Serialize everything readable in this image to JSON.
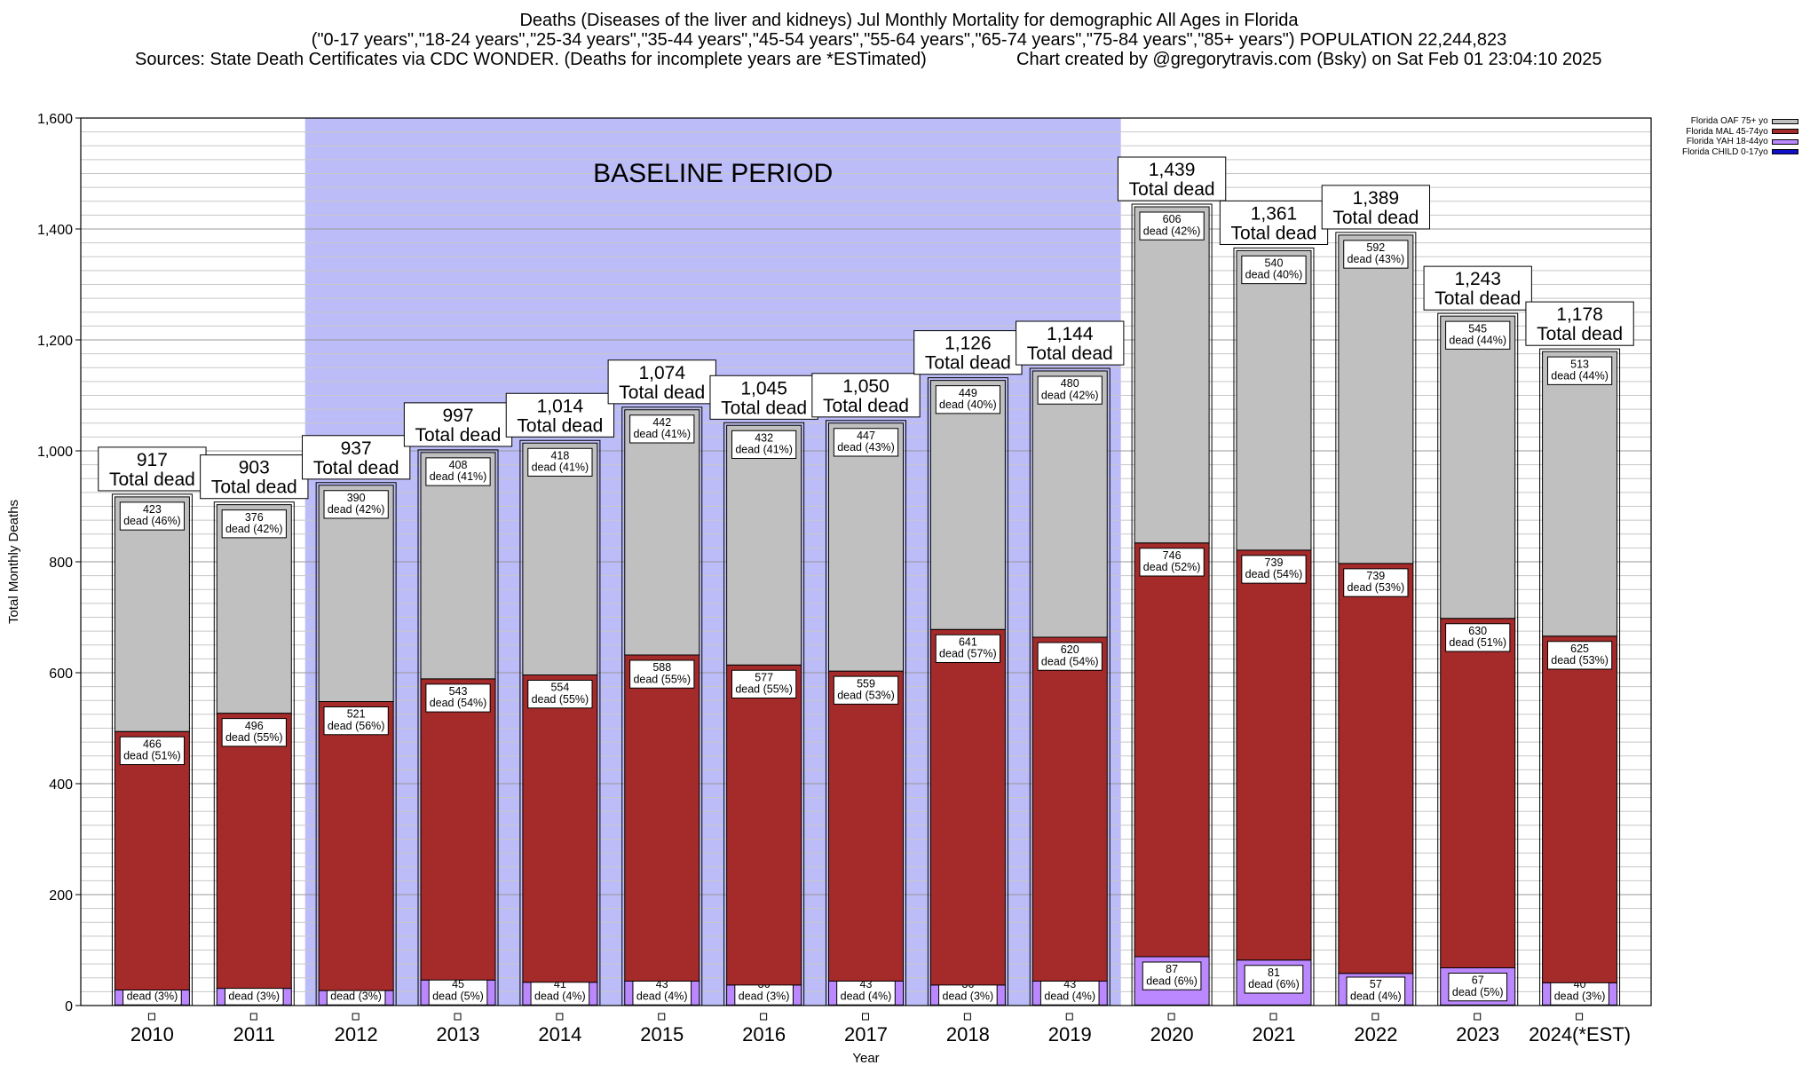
{
  "titles": {
    "line1": "Deaths (Diseases of the liver and kidneys) Jul Monthly Mortality for demographic All Ages in Florida",
    "line2": "(\"0-17 years\",\"18-24 years\",\"25-34 years\",\"35-44 years\",\"45-54 years\",\"55-64 years\",\"65-74 years\",\"75-84 years\",\"85+ years\") POPULATION 22,244,823",
    "sources": "Sources: State Death Certificates via CDC WONDER. (Deaths for incomplete years are *ESTimated)",
    "credit": "Chart created by @gregorytravis.com (Bsky) on Sat Feb 01 23:04:10 2025"
  },
  "legend": [
    {
      "label": "Florida OAF 75+ yo",
      "color": "#c0c0c0"
    },
    {
      "label": "Florida MAL 45-74yo",
      "color": "#a52a2a"
    },
    {
      "label": "Florida YAH 18-44yo",
      "color": "#bb88ff"
    },
    {
      "label": "Florida CHILD 0-17yo",
      "color": "#1010cc"
    }
  ],
  "chart_data": {
    "type": "bar",
    "stacked": true,
    "xlabel": "Year",
    "ylabel": "Total Monthly Deaths",
    "ylim": [
      0,
      1600
    ],
    "yticks": [
      0,
      200,
      400,
      600,
      800,
      1000,
      1200,
      1400,
      1600
    ],
    "ytick_labels": [
      "0",
      "200",
      "400",
      "600",
      "800",
      "1,000",
      "1,200",
      "1,400",
      "1,600"
    ],
    "grid": true,
    "legend_position": "top-right",
    "baseline_label": "BASELINE PERIOD",
    "baseline_range": [
      "2012",
      "2019"
    ],
    "total_suffix": "Total dead",
    "segment_suffix": "dead",
    "categories": [
      "2010",
      "2011",
      "2012",
      "2013",
      "2014",
      "2015",
      "2016",
      "2017",
      "2018",
      "2019",
      "2020",
      "2021",
      "2022",
      "2023",
      "2024(*EST)"
    ],
    "totals": [
      "917",
      "903",
      "937",
      "997",
      "1,014",
      "1,074",
      "1,045",
      "1,050",
      "1,126",
      "1,144",
      "1,439",
      "1,361",
      "1,389",
      "1,243",
      "1,178"
    ],
    "series": [
      {
        "name": "Florida CHILD 0-17yo",
        "color": "#1010cc",
        "values": [
          1,
          1,
          1,
          1,
          1,
          1,
          1,
          1,
          1,
          1,
          1,
          1,
          1,
          1,
          1
        ]
      },
      {
        "name": "Florida YAH 18-44yo",
        "color": "#bb88ff",
        "values": [
          27,
          30,
          26,
          45,
          41,
          43,
          36,
          43,
          36,
          43,
          87,
          81,
          57,
          67,
          40
        ],
        "pct": [
          "3%",
          "3%",
          "3%",
          "5%",
          "4%",
          "4%",
          "3%",
          "4%",
          "3%",
          "4%",
          "6%",
          "6%",
          "4%",
          "5%",
          "3%"
        ]
      },
      {
        "name": "Florida MAL 45-74yo",
        "color": "#a52a2a",
        "values": [
          466,
          496,
          521,
          543,
          554,
          588,
          577,
          559,
          641,
          620,
          746,
          739,
          739,
          630,
          625
        ],
        "pct": [
          "51%",
          "55%",
          "56%",
          "54%",
          "55%",
          "55%",
          "55%",
          "53%",
          "57%",
          "54%",
          "52%",
          "54%",
          "53%",
          "51%",
          "53%"
        ]
      },
      {
        "name": "Florida OAF 75+ yo",
        "color": "#c0c0c0",
        "values": [
          423,
          376,
          390,
          408,
          418,
          442,
          432,
          447,
          449,
          480,
          606,
          540,
          592,
          545,
          513
        ],
        "pct": [
          "46%",
          "42%",
          "42%",
          "41%",
          "41%",
          "41%",
          "41%",
          "43%",
          "40%",
          "42%",
          "42%",
          "40%",
          "43%",
          "44%",
          "44%"
        ]
      }
    ]
  }
}
